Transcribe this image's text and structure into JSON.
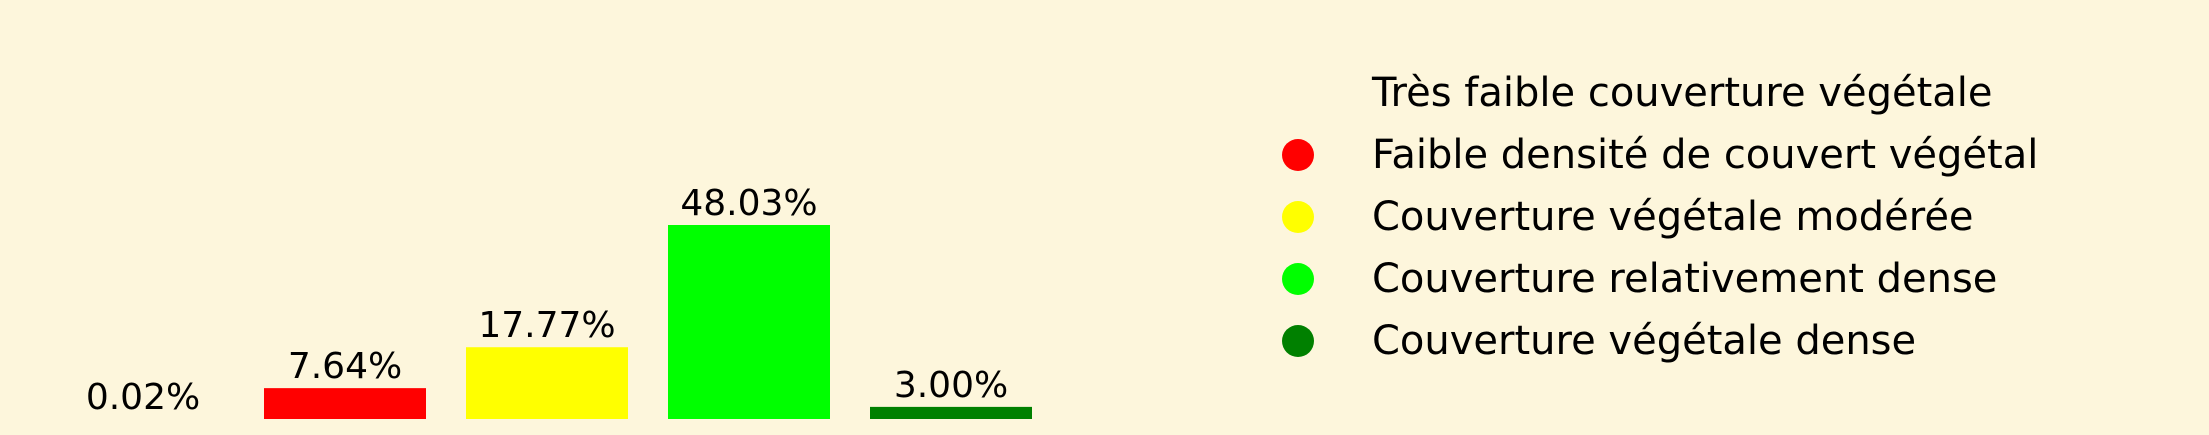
{
  "chart_data": {
    "type": "bar",
    "categories": [
      "Très faible couverture végétale",
      "Faible densité de couvert végétal",
      "Couverture végétale modérée",
      "Couverture relativement dense",
      "Couverture végétale dense"
    ],
    "values": [
      0.02,
      7.64,
      17.77,
      48.03,
      3.0
    ],
    "data_labels": [
      "0.02%",
      "7.64%",
      "17.77%",
      "48.03%",
      "3.00%"
    ],
    "colors": [
      "#fdf6dc",
      "#ff0000",
      "#ffff00",
      "#00ff00",
      "#008000"
    ],
    "ylim": [
      0,
      48.03
    ],
    "grid": false,
    "axes_visible": false,
    "legend_position": "right",
    "legend": [
      {
        "label": "Très faible couverture végétale",
        "color": "#fdf6dc"
      },
      {
        "label": "Faible densité de couvert végétal",
        "color": "#ff0000"
      },
      {
        "label": "Couverture végétale modérée",
        "color": "#ffff00"
      },
      {
        "label": "Couverture relativement dense",
        "color": "#00ff00"
      },
      {
        "label": "Couverture végétale dense",
        "color": "#008000"
      }
    ]
  }
}
